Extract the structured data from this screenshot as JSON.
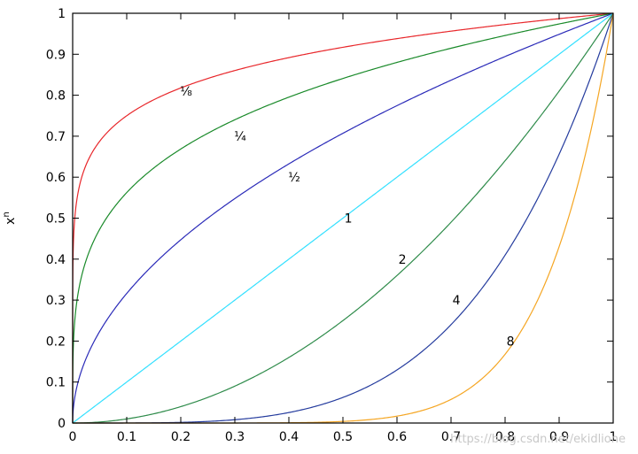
{
  "chart_data": {
    "type": "line",
    "title": "",
    "xlabel": "",
    "ylabel": "x",
    "ylabel_superscript": "n",
    "xlim": [
      0,
      1
    ],
    "ylim": [
      0,
      1
    ],
    "grid": false,
    "legend": "none",
    "x_ticks": [
      {
        "value": 0,
        "label": "0"
      },
      {
        "value": 0.1,
        "label": "0.1"
      },
      {
        "value": 0.2,
        "label": "0.2"
      },
      {
        "value": 0.3,
        "label": "0.3"
      },
      {
        "value": 0.4,
        "label": "0.4"
      },
      {
        "value": 0.5,
        "label": "0.5"
      },
      {
        "value": 0.6,
        "label": "0.6"
      },
      {
        "value": 0.7,
        "label": "0.7"
      },
      {
        "value": 0.8,
        "label": "0.8"
      },
      {
        "value": 0.9,
        "label": "0.9"
      },
      {
        "value": 1,
        "label": "1"
      }
    ],
    "y_ticks": [
      {
        "value": 0,
        "label": "0"
      },
      {
        "value": 0.1,
        "label": "0.1"
      },
      {
        "value": 0.2,
        "label": "0.2"
      },
      {
        "value": 0.3,
        "label": "0.3"
      },
      {
        "value": 0.4,
        "label": "0.4"
      },
      {
        "value": 0.5,
        "label": "0.5"
      },
      {
        "value": 0.6,
        "label": "0.6"
      },
      {
        "value": 0.7,
        "label": "0.7"
      },
      {
        "value": 0.8,
        "label": "0.8"
      },
      {
        "value": 0.9,
        "label": "0.9"
      },
      {
        "value": 1,
        "label": "1"
      }
    ],
    "series": [
      {
        "exponent": 0.125,
        "color": "#e8262a",
        "annotation": {
          "text": "⅛",
          "x": 0.21,
          "y": 0.81
        }
      },
      {
        "exponent": 0.25,
        "color": "#1a8a2a",
        "annotation": {
          "text": "¼",
          "x": 0.31,
          "y": 0.7
        }
      },
      {
        "exponent": 0.5,
        "color": "#2a2ab8",
        "annotation": {
          "text": "½",
          "x": 0.41,
          "y": 0.6
        }
      },
      {
        "exponent": 1,
        "color": "#33e0ff",
        "annotation": {
          "text": "1",
          "x": 0.51,
          "y": 0.5
        }
      },
      {
        "exponent": 2,
        "color": "#2e8b4a",
        "annotation": {
          "text": "2",
          "x": 0.61,
          "y": 0.4
        }
      },
      {
        "exponent": 4,
        "color": "#253c9e",
        "annotation": {
          "text": "4",
          "x": 0.71,
          "y": 0.3
        }
      },
      {
        "exponent": 8,
        "color": "#f5a623",
        "annotation": {
          "text": "8",
          "x": 0.81,
          "y": 0.2
        }
      }
    ]
  },
  "watermark": "https://blog.csdn.net/ekidlione"
}
